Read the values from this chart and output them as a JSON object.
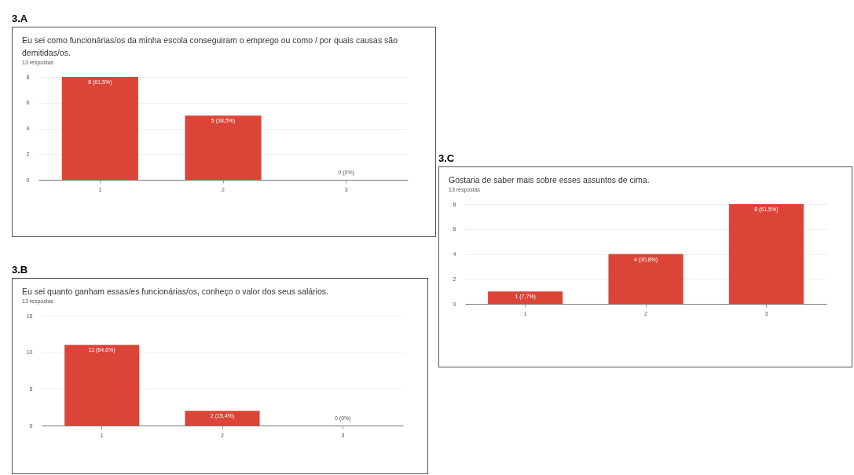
{
  "chart_data": [
    {
      "type": "bar",
      "title": "3.A",
      "subtitle": "Eu sei como funcionárias/os da minha escola conseguiram o emprego ou como / por quais causas são demitidas/os.",
      "annotations": [
        "13 respostas"
      ],
      "categories": [
        "1",
        "2",
        "3"
      ],
      "values": [
        8,
        5,
        0
      ],
      "value_labels": [
        "8 (61,5%)",
        "5 (38,5%)",
        "0 (0%)"
      ],
      "color": "#db4437",
      "ylim": [
        0,
        8
      ],
      "yticks": [
        0,
        2,
        4,
        6,
        8
      ],
      "grid": "y"
    },
    {
      "type": "bar",
      "title": "3.B",
      "subtitle": "Eu sei quanto ganham essas/es funcionárias/os, conheço o valor dos seus salários.",
      "annotations": [
        "13 respostas"
      ],
      "categories": [
        "1",
        "2",
        "3"
      ],
      "values": [
        11,
        2,
        0
      ],
      "value_labels": [
        "11 (84,6%)",
        "2 (15,4%)",
        "0 (0%)"
      ],
      "color": "#db4437",
      "ylim": [
        0,
        15
      ],
      "yticks": [
        0,
        5,
        10,
        15
      ],
      "grid": "y"
    },
    {
      "type": "bar",
      "title": "3.C",
      "subtitle": "Gostaria de saber mais sobre esses assuntos de cima.",
      "annotations": [
        "13 respostas"
      ],
      "categories": [
        "1",
        "2",
        "3"
      ],
      "values": [
        1,
        4,
        8
      ],
      "value_labels": [
        "1 (7,7%)",
        "4 (30,8%)",
        "8 (61,5%)"
      ],
      "color": "#db4437",
      "ylim": [
        0,
        8
      ],
      "yticks": [
        0,
        2,
        4,
        6,
        8
      ],
      "grid": "y"
    }
  ]
}
